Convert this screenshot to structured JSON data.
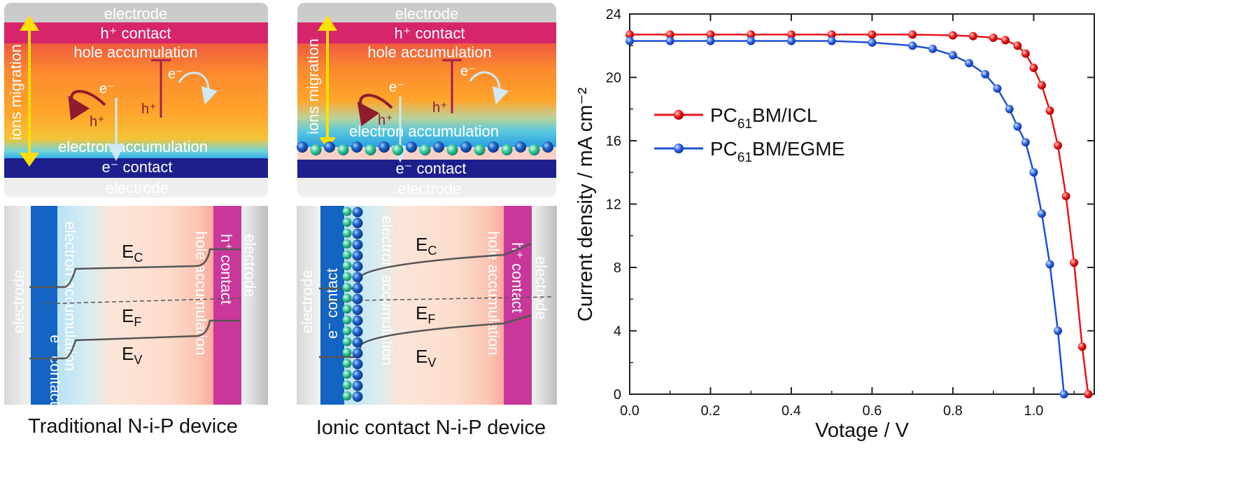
{
  "panels": {
    "top_left": {
      "electrode_top": "electrode",
      "h_contact": "h⁺ contact",
      "hole_accumulation": "hole accumulation",
      "ions_migration": "ions migration",
      "e_minus": "e⁻",
      "h_plus": "h⁺",
      "electron_accumulation": "electron accumulation",
      "e_contact": "e⁻ contact",
      "electrode_bottom": "electrode"
    },
    "top_mid": {
      "electrode_top": "electrode",
      "h_contact": "h⁺ contact",
      "hole_accumulation": "hole accumulation",
      "ions_migration": "ions migration",
      "e_minus": "e⁻",
      "h_plus": "h⁺",
      "electron_accumulation": "electron accumulation",
      "e_contact": "e⁻ contact",
      "electrode_bottom": "electrode"
    },
    "bottom_left": {
      "electrode_left": "electrode",
      "e_contact": "e⁻ contact",
      "electron_accumulation": "electron accumulation",
      "ec": "E",
      "ec_sub": "C",
      "ef": "E",
      "ef_sub": "F",
      "ev": "E",
      "ev_sub": "V",
      "hole_accumulation": "hole accumulation",
      "h_contact": "h⁺ contact",
      "electrode_right": "electrode"
    },
    "bottom_mid": {
      "electrode_left": "electrode",
      "e_contact": "e⁻ contact",
      "electron_accumulation": "electron accumulation",
      "ec": "E",
      "ec_sub": "C",
      "ef": "E",
      "ef_sub": "F",
      "ev": "E",
      "ev_sub": "V",
      "hole_accumulation": "hole accumulation",
      "h_contact": "h⁺ contact",
      "electrode_right": "electrode"
    },
    "captions": {
      "left": "Traditional N-i-P device",
      "mid": "Ionic contact N-i-P device"
    }
  },
  "chart_data": {
    "type": "line",
    "xlabel": "Votage / V",
    "ylabel": "Current density / mA cm⁻²",
    "xlim": [
      0,
      1.15
    ],
    "ylim": [
      0,
      24
    ],
    "xticks": [
      "0.0",
      "0.2",
      "0.4",
      "0.6",
      "0.8",
      "1.0"
    ],
    "yticks": [
      "0",
      "4",
      "8",
      "12",
      "16",
      "20",
      "24"
    ],
    "legend_position": "upper-left",
    "series": [
      {
        "name_main": "PC",
        "name_sub": "61",
        "name_rest": "BM/ICL",
        "color": "#e8141c",
        "points": [
          [
            0.0,
            22.7
          ],
          [
            0.1,
            22.7
          ],
          [
            0.2,
            22.7
          ],
          [
            0.3,
            22.7
          ],
          [
            0.4,
            22.7
          ],
          [
            0.5,
            22.7
          ],
          [
            0.6,
            22.7
          ],
          [
            0.7,
            22.7
          ],
          [
            0.8,
            22.65
          ],
          [
            0.85,
            22.6
          ],
          [
            0.9,
            22.5
          ],
          [
            0.93,
            22.35
          ],
          [
            0.96,
            22.0
          ],
          [
            0.98,
            21.5
          ],
          [
            1.0,
            20.6
          ],
          [
            1.02,
            19.5
          ],
          [
            1.04,
            17.9
          ],
          [
            1.06,
            15.7
          ],
          [
            1.08,
            12.5
          ],
          [
            1.1,
            8.3
          ],
          [
            1.12,
            3.0
          ],
          [
            1.135,
            0.0
          ]
        ]
      },
      {
        "name_main": "PC",
        "name_sub": "61",
        "name_rest": "BM/EGME",
        "color": "#1f4fd6",
        "points": [
          [
            0.0,
            22.3
          ],
          [
            0.1,
            22.3
          ],
          [
            0.2,
            22.3
          ],
          [
            0.3,
            22.3
          ],
          [
            0.4,
            22.3
          ],
          [
            0.5,
            22.3
          ],
          [
            0.6,
            22.2
          ],
          [
            0.7,
            22.0
          ],
          [
            0.75,
            21.8
          ],
          [
            0.8,
            21.4
          ],
          [
            0.84,
            20.9
          ],
          [
            0.88,
            20.2
          ],
          [
            0.91,
            19.3
          ],
          [
            0.94,
            18.0
          ],
          [
            0.96,
            16.9
          ],
          [
            0.98,
            15.9
          ],
          [
            1.0,
            14.0
          ],
          [
            1.02,
            11.4
          ],
          [
            1.04,
            8.2
          ],
          [
            1.06,
            4.0
          ],
          [
            1.075,
            0.0
          ]
        ]
      }
    ]
  }
}
